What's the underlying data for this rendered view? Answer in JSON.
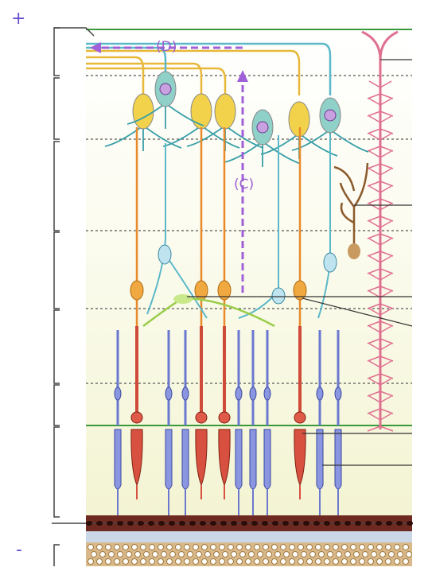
{
  "signs": {
    "top": "+",
    "bottom": "-"
  },
  "pathways": {
    "D": "(D)",
    "C": "(C)"
  }
}
